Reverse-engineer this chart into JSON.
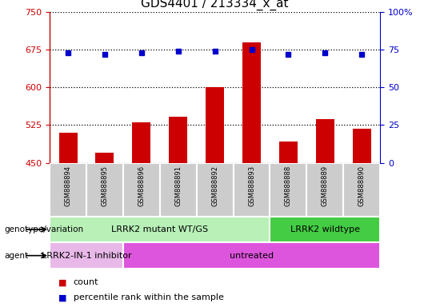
{
  "title": "GDS4401 / 213334_x_at",
  "samples": [
    "GSM888894",
    "GSM888895",
    "GSM888896",
    "GSM888891",
    "GSM888892",
    "GSM888893",
    "GSM888888",
    "GSM888889",
    "GSM888890"
  ],
  "counts": [
    510,
    470,
    530,
    542,
    600,
    690,
    492,
    537,
    518
  ],
  "percentile_ranks": [
    73,
    72,
    73,
    74,
    74,
    75,
    72,
    73,
    72
  ],
  "ylim_left": [
    450,
    750
  ],
  "ylim_right": [
    0,
    100
  ],
  "yticks_left": [
    450,
    525,
    600,
    675,
    750
  ],
  "yticks_right": [
    0,
    25,
    50,
    75,
    100
  ],
  "bar_color": "#cc0000",
  "dot_color": "#0000cc",
  "sample_bg": "#cccccc",
  "genotype_groups": [
    {
      "label": "LRRK2 mutant WT/GS",
      "start": 0,
      "end": 6,
      "color": "#b8f0b8"
    },
    {
      "label": "LRRK2 wildtype",
      "start": 6,
      "end": 9,
      "color": "#44cc44"
    }
  ],
  "agent_groups": [
    {
      "label": "LRRK2-IN-1 inhibitor",
      "start": 0,
      "end": 2,
      "color": "#e8b8e8"
    },
    {
      "label": "untreated",
      "start": 2,
      "end": 9,
      "color": "#dd55dd"
    }
  ],
  "legend_items": [
    {
      "label": "count",
      "color": "#cc0000"
    },
    {
      "label": "percentile rank within the sample",
      "color": "#0000cc"
    }
  ],
  "left_axis_color": "#cc0000",
  "right_axis_color": "#0000cc",
  "bar_width": 0.5,
  "dot_size": 18
}
